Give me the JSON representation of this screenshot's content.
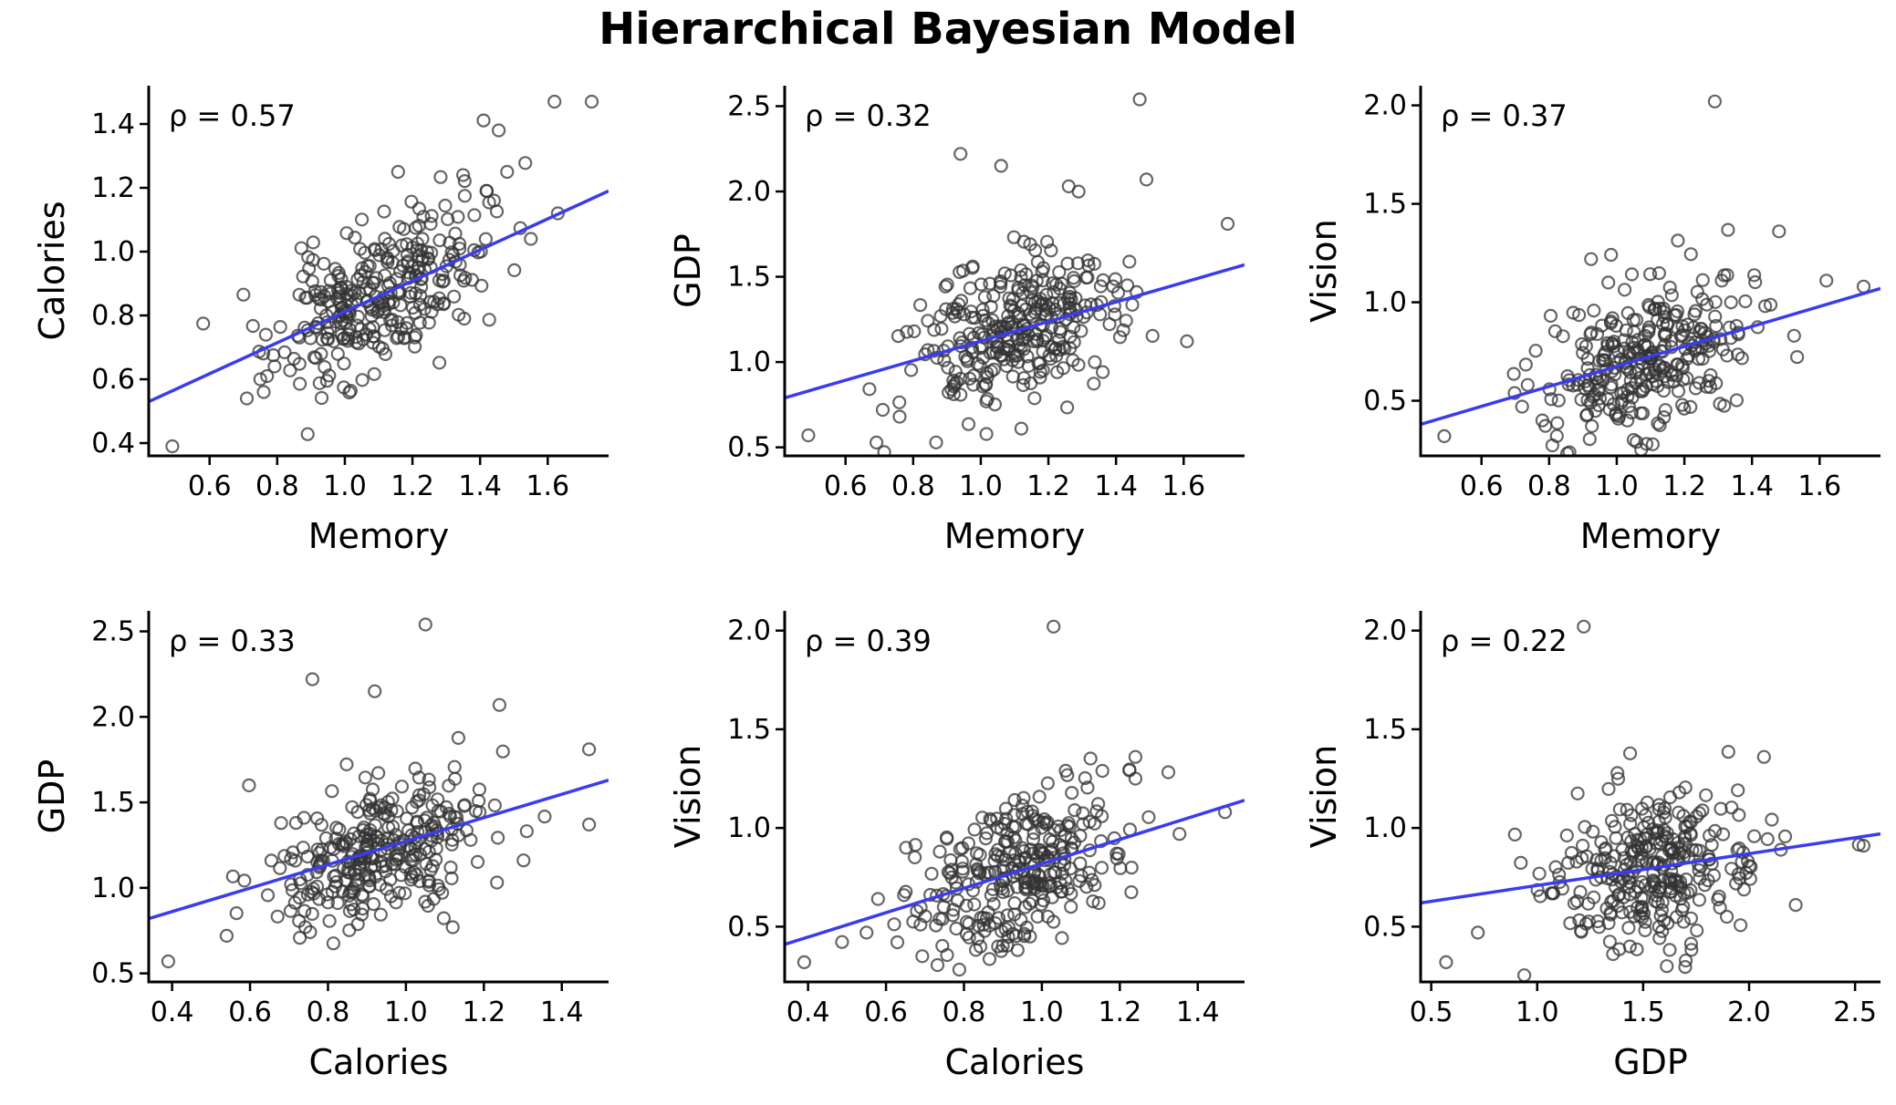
{
  "title": "Hierarchical Bayesian Model",
  "colors": {
    "points": "#333333",
    "fit_line": "#3b3bf0",
    "axes": "#000000"
  },
  "chart_data": [
    {
      "type": "scatter",
      "xlabel": "Memory",
      "ylabel": "Calories",
      "annotation": "ρ = 0.57",
      "xlim": [
        0.42,
        1.78
      ],
      "ylim": [
        0.36,
        1.52
      ],
      "xticks": [
        "0.6",
        "0.8",
        "1.0",
        "1.2",
        "1.4",
        "1.6"
      ],
      "yticks": [
        "0.4",
        "0.6",
        "0.8",
        "1.0",
        "1.2",
        "1.4"
      ],
      "fit": {
        "x": [
          0.42,
          1.78
        ],
        "y": [
          0.53,
          1.19
        ]
      },
      "outliers": [
        [
          0.49,
          0.39
        ],
        [
          0.71,
          0.54
        ],
        [
          0.76,
          0.56
        ],
        [
          0.77,
          0.61
        ],
        [
          0.75,
          0.6
        ],
        [
          1.62,
          1.47
        ],
        [
          1.73,
          1.47
        ],
        [
          1.63,
          1.12
        ],
        [
          1.55,
          1.04
        ],
        [
          1.48,
          1.25
        ],
        [
          1.35,
          1.24
        ],
        [
          1.42,
          1.19
        ]
      ],
      "n_points": 300,
      "rho": 0.57,
      "seed": 11
    },
    {
      "type": "scatter",
      "xlabel": "Memory",
      "ylabel": "GDP",
      "annotation": "ρ = 0.32",
      "xlim": [
        0.42,
        1.78
      ],
      "ylim": [
        0.45,
        2.62
      ],
      "xticks": [
        "0.6",
        "0.8",
        "1.0",
        "1.2",
        "1.4",
        "1.6"
      ],
      "yticks": [
        "0.5",
        "1.0",
        "1.5",
        "2.0",
        "2.5"
      ],
      "fit": {
        "x": [
          0.42,
          1.78
        ],
        "y": [
          0.79,
          1.57
        ]
      },
      "outliers": [
        [
          0.49,
          0.57
        ],
        [
          0.71,
          0.72
        ],
        [
          0.76,
          0.68
        ],
        [
          0.94,
          2.22
        ],
        [
          1.06,
          2.15
        ],
        [
          1.47,
          2.54
        ],
        [
          1.49,
          2.07
        ],
        [
          1.73,
          1.81
        ],
        [
          1.26,
          2.03
        ],
        [
          1.12,
          0.61
        ]
      ],
      "n_points": 300,
      "rho": 0.32,
      "seed": 23
    },
    {
      "type": "scatter",
      "xlabel": "Memory",
      "ylabel": "Vision",
      "annotation": "ρ = 0.37",
      "xlim": [
        0.42,
        1.78
      ],
      "ylim": [
        0.22,
        2.1
      ],
      "xticks": [
        "0.6",
        "0.8",
        "1.0",
        "1.2",
        "1.4",
        "1.6"
      ],
      "yticks": [
        "0.5",
        "1.0",
        "1.5",
        "2.0"
      ],
      "fit": {
        "x": [
          0.42,
          1.78
        ],
        "y": [
          0.38,
          1.07
        ]
      },
      "outliers": [
        [
          0.49,
          0.32
        ],
        [
          1.29,
          2.02
        ],
        [
          1.73,
          1.08
        ],
        [
          1.62,
          1.11
        ],
        [
          1.48,
          1.36
        ],
        [
          0.72,
          0.47
        ],
        [
          0.78,
          0.4
        ]
      ],
      "n_points": 300,
      "rho": 0.37,
      "seed": 37
    },
    {
      "type": "scatter",
      "xlabel": "Calories",
      "ylabel": "GDP",
      "annotation": "ρ = 0.33",
      "xlim": [
        0.34,
        1.52
      ],
      "ylim": [
        0.45,
        2.62
      ],
      "xticks": [
        "0.4",
        "0.6",
        "0.8",
        "1.0",
        "1.2",
        "1.4"
      ],
      "yticks": [
        "0.5",
        "1.0",
        "1.5",
        "2.0",
        "2.5"
      ],
      "fit": {
        "x": [
          0.34,
          1.52
        ],
        "y": [
          0.82,
          1.63
        ]
      },
      "outliers": [
        [
          0.39,
          0.57
        ],
        [
          1.05,
          2.54
        ],
        [
          0.76,
          2.22
        ],
        [
          0.92,
          2.15
        ],
        [
          1.24,
          2.07
        ],
        [
          1.47,
          1.81
        ],
        [
          1.47,
          1.37
        ],
        [
          1.12,
          0.77
        ],
        [
          0.54,
          0.72
        ]
      ],
      "n_points": 300,
      "rho": 0.33,
      "seed": 41
    },
    {
      "type": "scatter",
      "xlabel": "Calories",
      "ylabel": "Vision",
      "annotation": "ρ = 0.39",
      "xlim": [
        0.34,
        1.52
      ],
      "ylim": [
        0.22,
        2.1
      ],
      "xticks": [
        "0.4",
        "0.6",
        "0.8",
        "1.0",
        "1.2",
        "1.4"
      ],
      "yticks": [
        "0.5",
        "1.0",
        "1.5",
        "2.0"
      ],
      "fit": {
        "x": [
          0.34,
          1.52
        ],
        "y": [
          0.41,
          1.14
        ]
      },
      "outliers": [
        [
          0.39,
          0.32
        ],
        [
          1.03,
          2.02
        ],
        [
          1.47,
          1.08
        ],
        [
          1.24,
          1.36
        ],
        [
          1.24,
          1.25
        ],
        [
          0.55,
          0.47
        ]
      ],
      "n_points": 300,
      "rho": 0.39,
      "seed": 53
    },
    {
      "type": "scatter",
      "xlabel": "GDP",
      "ylabel": "Vision",
      "annotation": "ρ = 0.22",
      "xlim": [
        0.45,
        2.62
      ],
      "ylim": [
        0.22,
        2.1
      ],
      "xticks": [
        "0.5",
        "1.0",
        "1.5",
        "2.0",
        "2.5"
      ],
      "yticks": [
        "0.5",
        "1.0",
        "1.5",
        "2.0"
      ],
      "fit": {
        "x": [
          0.45,
          2.62
        ],
        "y": [
          0.62,
          0.97
        ]
      },
      "outliers": [
        [
          0.57,
          0.32
        ],
        [
          1.22,
          2.02
        ],
        [
          2.54,
          0.91
        ],
        [
          2.22,
          0.61
        ],
        [
          2.15,
          0.89
        ],
        [
          2.07,
          1.36
        ],
        [
          0.72,
          0.47
        ]
      ],
      "n_points": 300,
      "rho": 0.22,
      "seed": 67
    }
  ]
}
